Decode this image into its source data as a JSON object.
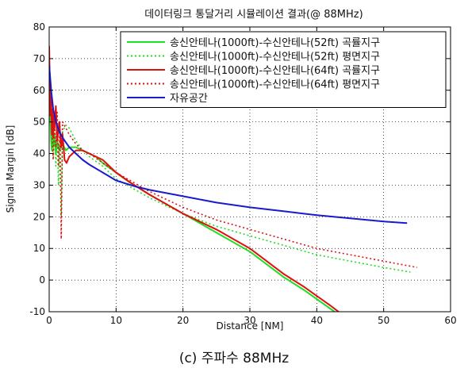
{
  "caption": "(c) 주파수 88MHz",
  "chart_data": {
    "type": "line",
    "title": "데이터링크 통달거리 시뮬레이션 결과(@ 88MHz)",
    "xlabel": "Distance [NM]",
    "ylabel": "Signal Margin [dB]",
    "xlim": [
      0,
      60
    ],
    "ylim": [
      -10,
      80
    ],
    "xticks": [
      "0",
      "10",
      "20",
      "30",
      "40",
      "50",
      "60"
    ],
    "yticks": [
      "-10",
      "0",
      "10",
      "20",
      "30",
      "40",
      "50",
      "60",
      "70",
      "80"
    ],
    "grid": "dotted",
    "legend_position": "top-right",
    "series": [
      {
        "name": "송신안테나(1000ft)-수신안테나(52ft) 곡률지구",
        "color": "#22dd22",
        "dash": "solid",
        "x": [
          0.0,
          0.1,
          0.2,
          0.3,
          0.4,
          0.5,
          0.6,
          0.8,
          1.0,
          1.2,
          1.5,
          2.0,
          2.5,
          3.0,
          3.5,
          4.0,
          5.0,
          6.0,
          7.0,
          8.0,
          10.0,
          12.0,
          15.0,
          20.0,
          25.0,
          30.0,
          35.0,
          38.0,
          40.0,
          42.0,
          44.0
        ],
        "y": [
          68,
          60,
          50,
          44,
          41,
          50,
          42,
          46,
          40,
          44,
          41,
          43,
          41,
          42,
          42,
          42,
          41,
          40,
          39,
          37,
          34,
          31,
          27,
          21,
          15,
          9,
          1,
          -3,
          -6,
          -9,
          -12
        ]
      },
      {
        "name": "송신안테나(1000ft)-수신안테나(52ft) 평면지구",
        "color": "#22dd22",
        "dash": "dotted",
        "x": [
          0.0,
          0.2,
          0.4,
          0.6,
          0.8,
          1.0,
          1.2,
          1.4,
          1.6,
          1.8,
          2.0,
          2.5,
          3.0,
          3.5,
          4.0,
          5.0,
          6.0,
          8.0,
          10.0,
          15.0,
          20.0,
          25.0,
          30.0,
          35.0,
          40.0,
          45.0,
          50.0,
          54.0
        ],
        "y": [
          66,
          52,
          44,
          39,
          48,
          36,
          45,
          30,
          44,
          20,
          47,
          49,
          48,
          46,
          44,
          41,
          39,
          36,
          32,
          26,
          21,
          17,
          14,
          11,
          8,
          6,
          4,
          2.5
        ]
      },
      {
        "name": "송신안테나(1000ft)-수신안테나(64ft) 곡률지구",
        "color": "#dd1111",
        "dash": "solid",
        "x": [
          0.0,
          0.1,
          0.2,
          0.3,
          0.4,
          0.5,
          0.6,
          0.7,
          0.8,
          1.0,
          1.2,
          1.5,
          1.8,
          2.0,
          2.3,
          2.6,
          3.0,
          3.5,
          4.0,
          4.5,
          5.0,
          6.0,
          8.0,
          10.0,
          12.0,
          15.0,
          20.0,
          25.0,
          30.0,
          35.0,
          38.0,
          40.0,
          42.0,
          44.5
        ],
        "y": [
          74,
          62,
          52,
          58,
          46,
          54,
          45,
          52,
          48,
          55,
          44,
          50,
          42,
          46,
          38,
          37,
          39,
          40,
          41,
          41,
          41,
          40,
          38,
          34,
          31,
          27,
          21,
          16,
          10,
          2,
          -2,
          -5,
          -8,
          -12
        ]
      },
      {
        "name": "송신안테나(1000ft)-수신안테나(64ft) 평면지구",
        "color": "#dd1111",
        "dash": "dotted",
        "x": [
          0.0,
          0.2,
          0.4,
          0.6,
          0.8,
          1.0,
          1.2,
          1.4,
          1.6,
          1.8,
          2.0,
          2.5,
          3.0,
          4.0,
          5.0,
          6.0,
          8.0,
          10.0,
          15.0,
          20.0,
          25.0,
          30.0,
          35.0,
          40.0,
          45.0,
          50.0,
          55.0
        ],
        "y": [
          70,
          55,
          48,
          38,
          50,
          42,
          53,
          36,
          50,
          13,
          50,
          48,
          46,
          43,
          41,
          40,
          37,
          34,
          28,
          23,
          19,
          16,
          13,
          10,
          8,
          6,
          4
        ]
      },
      {
        "name": "자유공간",
        "color": "#1a1acc",
        "dash": "solid",
        "x": [
          0.0,
          0.3,
          0.6,
          1.0,
          1.5,
          2.0,
          3.0,
          4.0,
          5.0,
          6.0,
          8.0,
          10.0,
          13.0,
          15.0,
          20.0,
          25.0,
          30.0,
          35.0,
          40.0,
          45.0,
          50.0,
          53.5
        ],
        "y": [
          68,
          60,
          54,
          50,
          47,
          45,
          42,
          40,
          38,
          36.5,
          34,
          31.5,
          29.5,
          28.5,
          26.5,
          24.5,
          23,
          21.8,
          20.5,
          19.5,
          18.5,
          18
        ]
      }
    ]
  }
}
